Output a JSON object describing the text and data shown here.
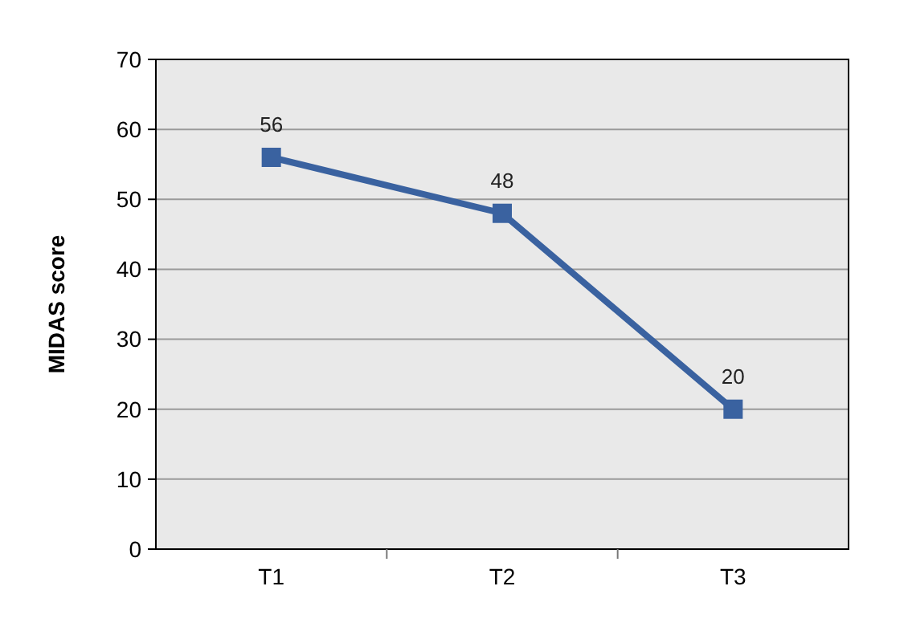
{
  "chart_data": {
    "type": "line",
    "ylabel": "MIDAS score",
    "categories": [
      "T1",
      "T2",
      "T3"
    ],
    "series": [
      {
        "color": "#3a62a0",
        "values": [
          56,
          48,
          20
        ]
      }
    ],
    "ylim": [
      0,
      70
    ],
    "yticks": [
      0,
      10,
      20,
      30,
      40,
      50,
      60,
      70
    ],
    "grid": "y",
    "marker": "square",
    "line_style": "solid",
    "data_labels": true
  }
}
